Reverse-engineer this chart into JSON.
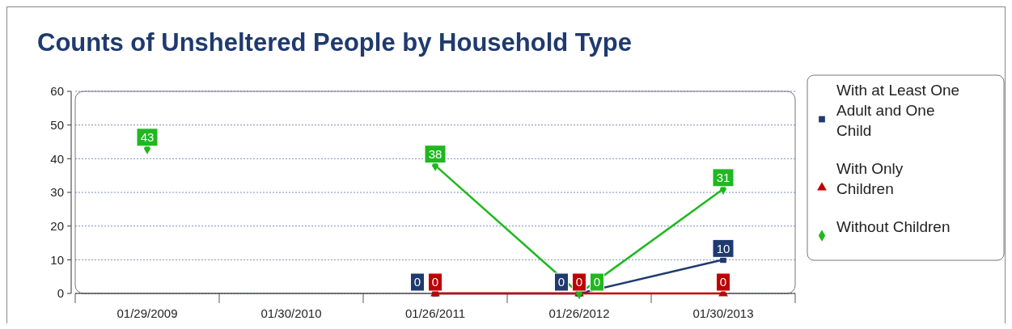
{
  "chart_data": {
    "type": "line",
    "title": "Counts of Unsheltered People by Household Type",
    "categories": [
      "01/29/2009",
      "01/30/2010",
      "01/26/2011",
      "01/26/2012",
      "01/30/2013"
    ],
    "series": [
      {
        "name": "With at Least One Adult and One Child",
        "color": "#1f3a6e",
        "marker": "square",
        "values": [
          null,
          null,
          0,
          0,
          10
        ]
      },
      {
        "name": "With Only Children",
        "color": "#c00000",
        "marker": "triangle",
        "values": [
          null,
          null,
          0,
          0,
          0
        ]
      },
      {
        "name": "Without Children",
        "color": "#1fb81f",
        "marker": "diamond",
        "values": [
          43,
          null,
          38,
          0,
          31
        ]
      }
    ],
    "ylim": [
      0,
      60
    ],
    "yticks": [
      0,
      10,
      20,
      30,
      40,
      50,
      60
    ],
    "grid": "y",
    "legend": "right",
    "data_labels": true
  }
}
